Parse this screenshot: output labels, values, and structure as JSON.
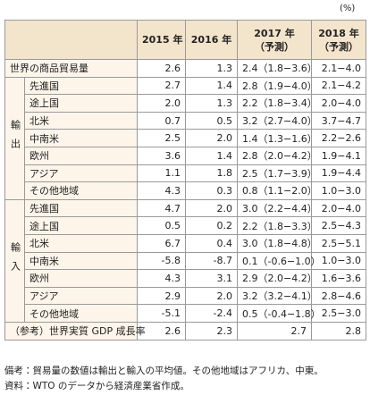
{
  "unit": "(%)",
  "header": {
    "columns": [
      {
        "label": "2015 年"
      },
      {
        "label": "2016 年"
      },
      {
        "label": "2017 年",
        "sub": "（予測）"
      },
      {
        "label": "2018 年",
        "sub": "（予測）"
      }
    ]
  },
  "world": {
    "label": "世界の商品貿易量",
    "values": [
      "2.6",
      "1.3",
      "2.4（1.8−3.6）",
      "2.1−4.0"
    ]
  },
  "groups": [
    {
      "label": "輸出",
      "rows": [
        {
          "label": "先進国",
          "values": [
            "2.7",
            "1.4",
            "2.8（1.9−4.0）",
            "2.1−4.2"
          ]
        },
        {
          "label": "途上国",
          "values": [
            "2.0",
            "1.3",
            "2.2（1.8−3.4）",
            "2.0−4.0"
          ]
        },
        {
          "label": "北米",
          "values": [
            "0.7",
            "0.5",
            "3.2（2.7−4.0）",
            "3.7−4.7"
          ]
        },
        {
          "label": "中南米",
          "values": [
            "2.5",
            "2.0",
            "1.4（1.3−1.6）",
            "2.2−2.6"
          ]
        },
        {
          "label": "欧州",
          "values": [
            "3.6",
            "1.4",
            "2.8（2.0−4.2）",
            "1.9−4.1"
          ]
        },
        {
          "label": "アジア",
          "values": [
            "1.1",
            "1.8",
            "2.5（1.7−3.9）",
            "1.9−4.4"
          ]
        },
        {
          "label": "その他地域",
          "values": [
            "4.3",
            "0.3",
            "0.8（1.1−2.0）",
            "1.0−3.0"
          ]
        }
      ]
    },
    {
      "label": "輸入",
      "rows": [
        {
          "label": "先進国",
          "values": [
            "4.7",
            "2.0",
            "3.0（2.2−4.4）",
            "2.0−4.0"
          ]
        },
        {
          "label": "途上国",
          "values": [
            "0.5",
            "0.2",
            "2.2（1.8−3.3）",
            "2.5−4.3"
          ]
        },
        {
          "label": "北米",
          "values": [
            "6.7",
            "0.4",
            "3.0（1.8−4.8）",
            "2.5−5.1"
          ]
        },
        {
          "label": "中南米",
          "values": [
            "-5.8",
            "-8.7",
            "0.1（-0.6−1.0）",
            "1.0−3.0"
          ]
        },
        {
          "label": "欧州",
          "values": [
            "4.3",
            "3.1",
            "2.9（2.0−4.2）",
            "1.6−3.6"
          ]
        },
        {
          "label": "アジア",
          "values": [
            "2.9",
            "2.0",
            "3.2（3.2−4.1）",
            "2.8−4.6"
          ]
        },
        {
          "label": "その他地域",
          "values": [
            "-5.1",
            "-2.4",
            "0.5（-0.4−1.8）",
            "2.5−3.0"
          ]
        }
      ]
    }
  ],
  "reference": {
    "label": "（参考）世界実質 GDP 成長率",
    "values": [
      "2.6",
      "2.3",
      "2.7",
      "2.8"
    ]
  },
  "notes": [
    "備考：貿易量の数値は輸出と輸入の平均値。その他地域はアフリカ、中東。",
    "資料：WTO のデータから経済産業省作成。"
  ]
}
